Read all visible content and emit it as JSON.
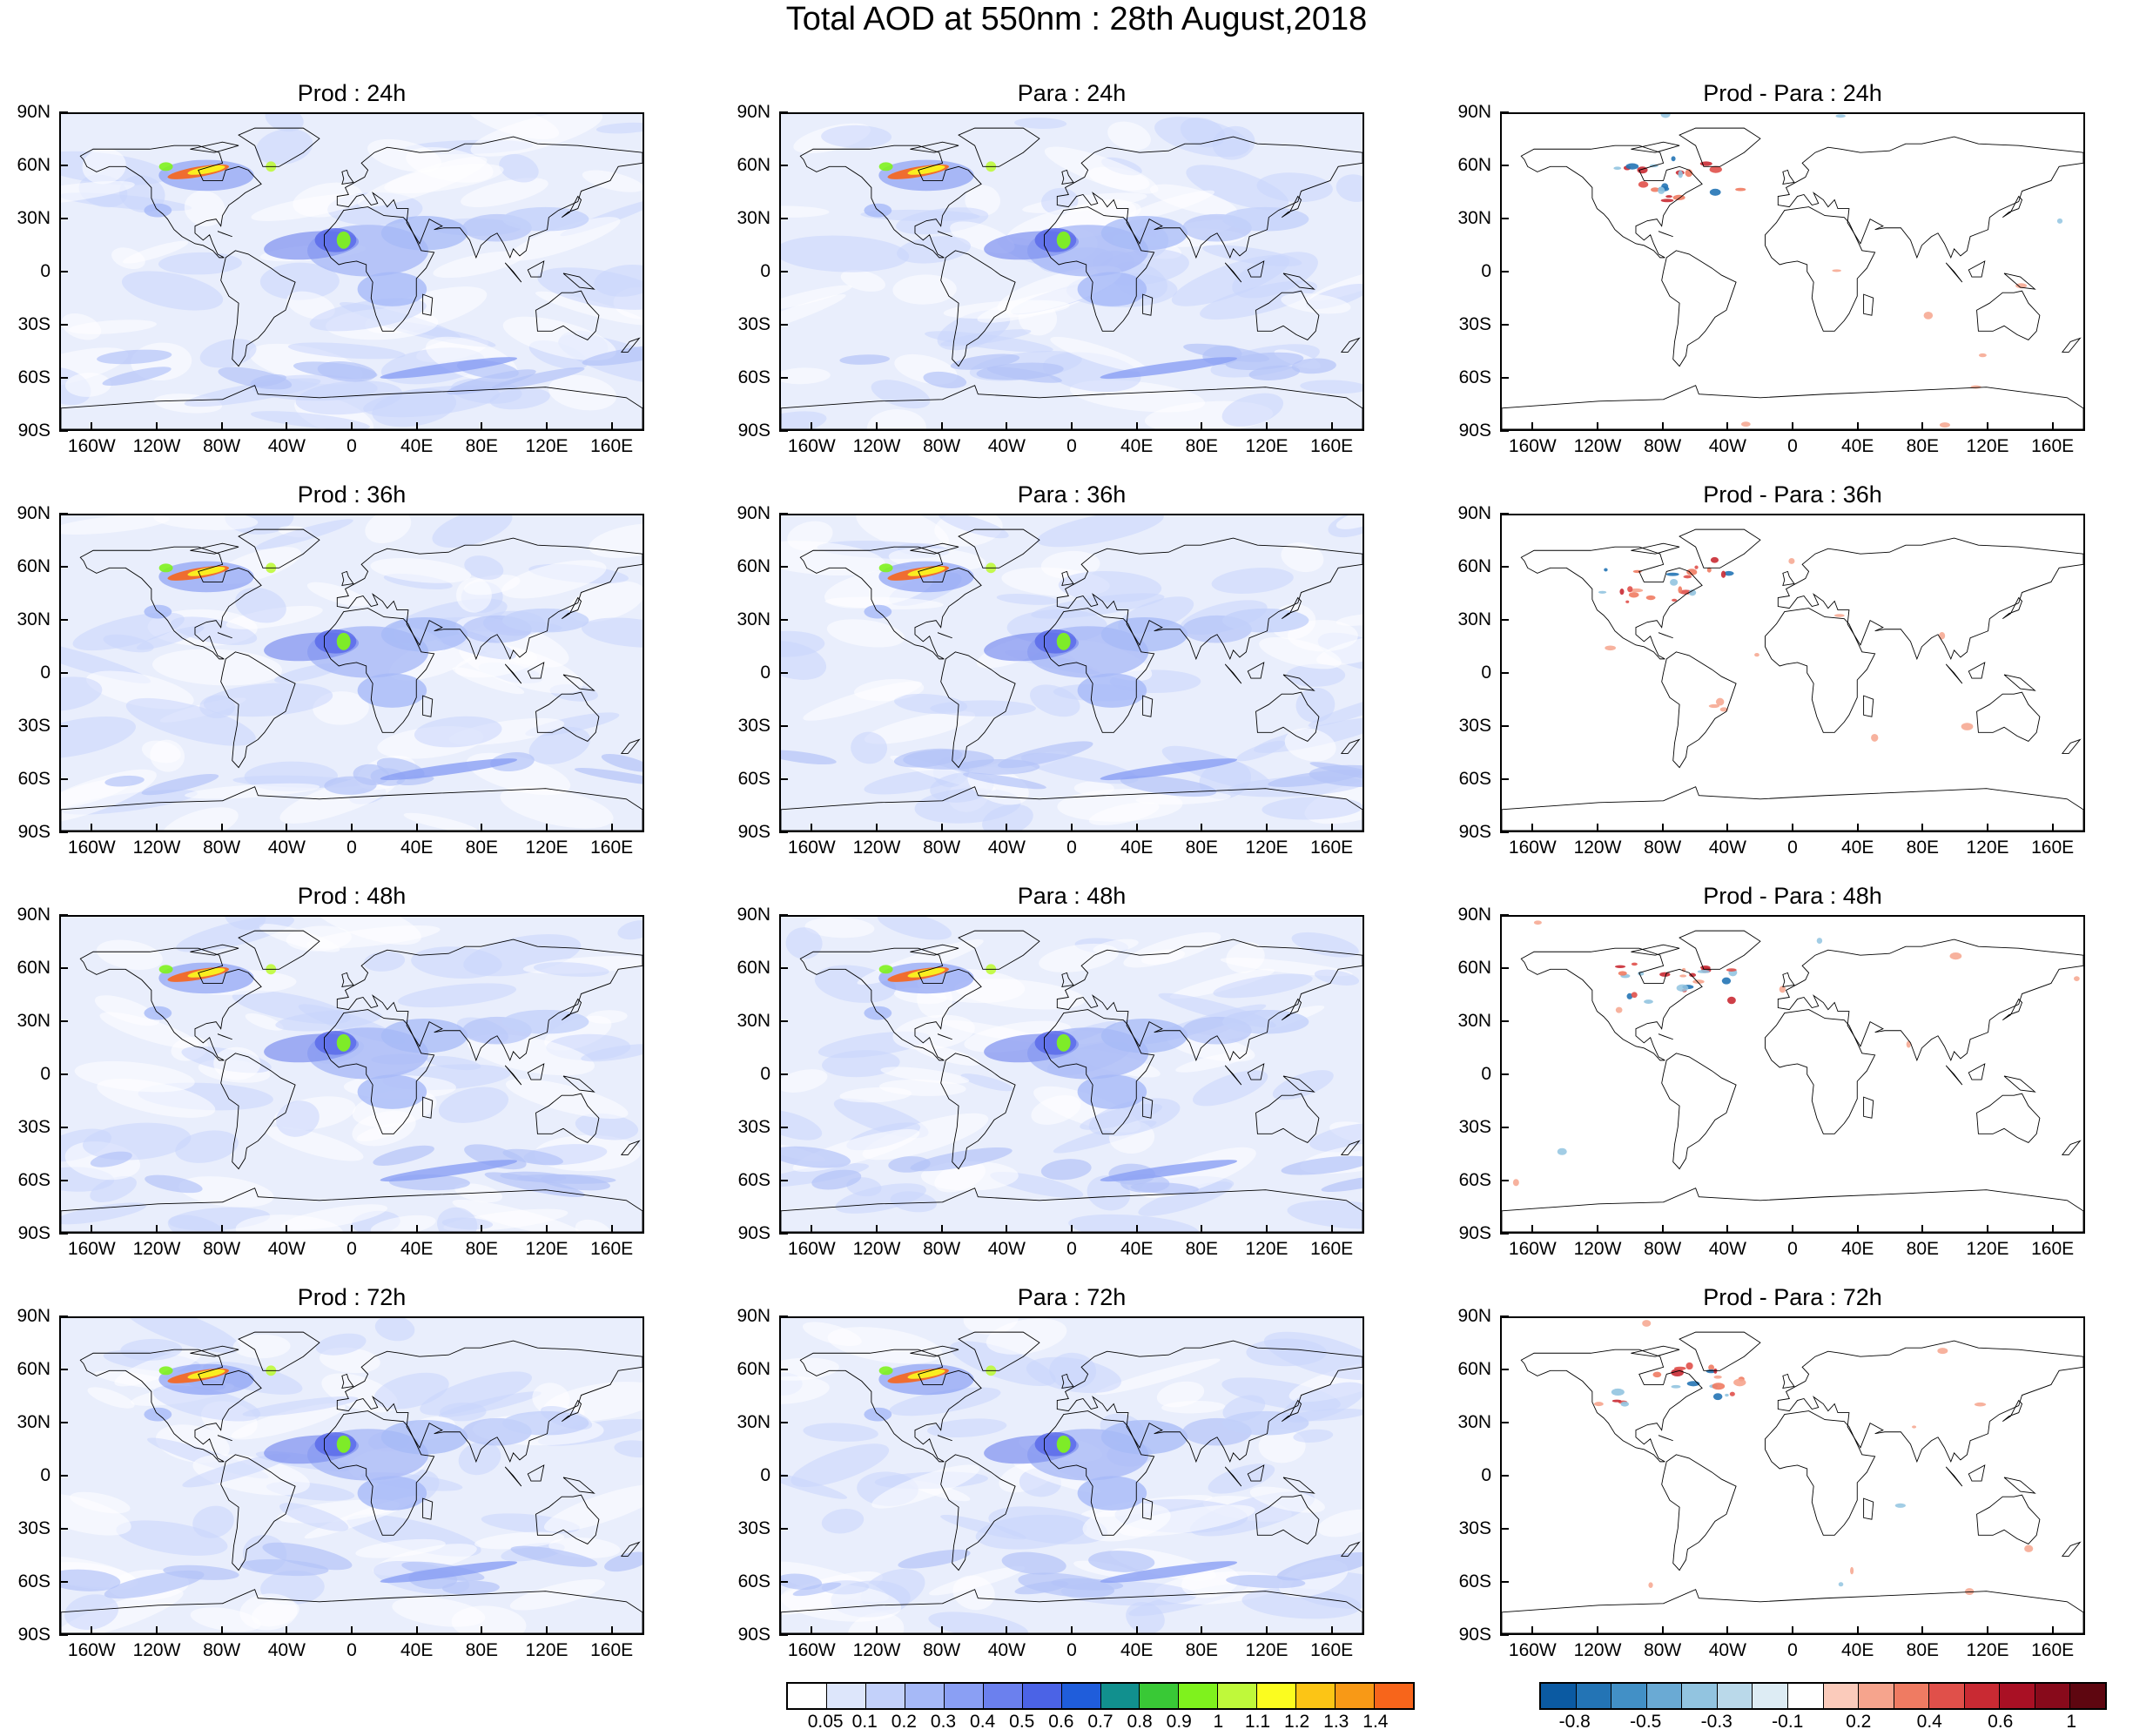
{
  "title": "Total AOD at 550nm : 28th August,2018",
  "lat_labels": [
    "90N",
    "60N",
    "30N",
    "0",
    "30S",
    "60S",
    "90S"
  ],
  "lon_labels": [
    "160W",
    "120W",
    "80W",
    "40W",
    "0",
    "40E",
    "80E",
    "120E",
    "160E"
  ],
  "rows": [
    {
      "prod": "Prod : 24h",
      "para": "Para : 24h",
      "diff": "Prod - Para : 24h"
    },
    {
      "prod": "Prod : 36h",
      "para": "Para : 36h",
      "diff": "Prod - Para : 36h"
    },
    {
      "prod": "Prod : 48h",
      "para": "Para : 48h",
      "diff": "Prod - Para : 48h"
    },
    {
      "prod": "Prod : 72h",
      "para": "Para : 72h",
      "diff": "Prod - Para : 72h"
    }
  ],
  "aod_colorbar": {
    "labels": [
      "0.05",
      "0.1",
      "0.2",
      "0.3",
      "0.4",
      "0.5",
      "0.6",
      "0.7",
      "0.8",
      "0.9",
      "1",
      "1.1",
      "1.2",
      "1.3",
      "1.4"
    ],
    "colors": [
      "#ffffff",
      "#dde6fb",
      "#c3d1fa",
      "#a6b9f7",
      "#8a9ff4",
      "#6b80ee",
      "#4b63e6",
      "#1f5ddb",
      "#11908e",
      "#39c936",
      "#7ff21d",
      "#bff93a",
      "#fbfc1f",
      "#fcc515",
      "#f89916",
      "#f7651b"
    ]
  },
  "diff_colorbar": {
    "labels": [
      "-0.8",
      "-0.5",
      "-0.3",
      "-0.1",
      "0.2",
      "0.4",
      "0.6",
      "1"
    ],
    "colors": [
      "#0b5aa2",
      "#2374b5",
      "#4290c6",
      "#6aaad4",
      "#92c4e0",
      "#bad9ea",
      "#ddecf4",
      "#ffffff",
      "#fbcbbb",
      "#f6a48d",
      "#ef7b62",
      "#e0504a",
      "#c92a33",
      "#a91024",
      "#880a1b",
      "#5e0610"
    ]
  }
}
